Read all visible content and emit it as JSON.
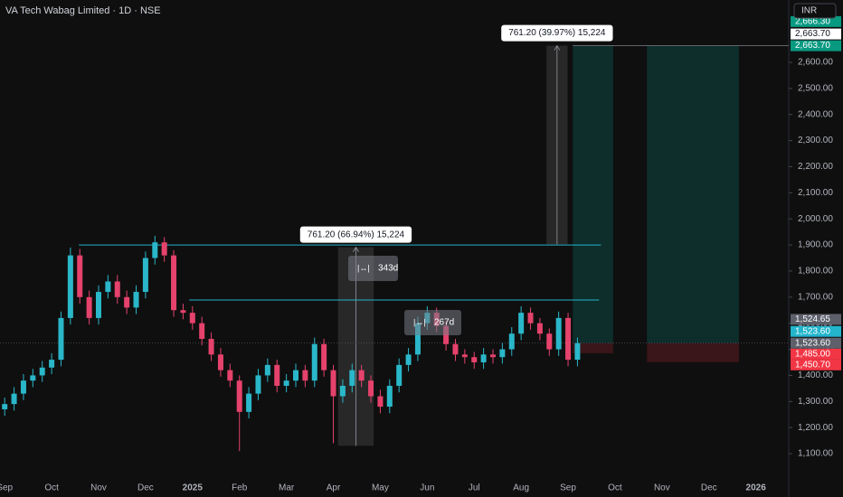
{
  "chart_data": {
    "type": "candlestick",
    "title": "VA Tech Wabag Limited · 1D · NSE",
    "currency": "INR",
    "up_color": "#2ab7c9",
    "down_color": "#e5426c",
    "xlim": [
      -0.1,
      16.7
    ],
    "ylim": [
      1010,
      2839
    ],
    "xticks": [
      {
        "value": 0,
        "label": "Sep"
      },
      {
        "value": 1,
        "label": "Oct"
      },
      {
        "value": 2,
        "label": "Nov"
      },
      {
        "value": 3,
        "label": "Dec"
      },
      {
        "value": 4,
        "label": "2025"
      },
      {
        "value": 5,
        "label": "Feb"
      },
      {
        "value": 6,
        "label": "Mar"
      },
      {
        "value": 7,
        "label": "Apr"
      },
      {
        "value": 8,
        "label": "May"
      },
      {
        "value": 9,
        "label": "Jun"
      },
      {
        "value": 10,
        "label": "Jul"
      },
      {
        "value": 11,
        "label": "Aug"
      },
      {
        "value": 12,
        "label": "Sep"
      },
      {
        "value": 13,
        "label": "Oct"
      },
      {
        "value": 14,
        "label": "Nov"
      },
      {
        "value": 15,
        "label": "Dec"
      },
      {
        "value": 16,
        "label": "2026"
      }
    ],
    "yticks": [
      {
        "value": 1100,
        "label": "1,100.00"
      },
      {
        "value": 1200,
        "label": "1,200.00"
      },
      {
        "value": 1300,
        "label": "1,300.00"
      },
      {
        "value": 1400,
        "label": "1,400.00"
      },
      {
        "value": 1500,
        "label": "1,500.00"
      },
      {
        "value": 1600,
        "label": "1,600.00"
      },
      {
        "value": 1700,
        "label": "1,700.00"
      },
      {
        "value": 1800,
        "label": "1,800.00"
      },
      {
        "value": 1900,
        "label": "1,900.00"
      },
      {
        "value": 2000,
        "label": "2,000.00"
      },
      {
        "value": 2100,
        "label": "2,100.00"
      },
      {
        "value": 2200,
        "label": "2,200.00"
      },
      {
        "value": 2300,
        "label": "2,300.00"
      },
      {
        "value": 2400,
        "label": "2,400.00"
      },
      {
        "value": 2500,
        "label": "2,500.00"
      },
      {
        "value": 2600,
        "label": "2,600.00"
      }
    ],
    "x": [
      0,
      0.2,
      0.4,
      0.6,
      0.8,
      1.0,
      1.2,
      1.4,
      1.6,
      1.8,
      2.0,
      2.2,
      2.4,
      2.6,
      2.8,
      3.0,
      3.2,
      3.4,
      3.6,
      3.8,
      4.0,
      4.2,
      4.4,
      4.6,
      4.8,
      5.0,
      5.2,
      5.4,
      5.6,
      5.8,
      6.0,
      6.2,
      6.4,
      6.6,
      6.8,
      7.0,
      7.2,
      7.4,
      7.6,
      7.8,
      8.0,
      8.2,
      8.4,
      8.6,
      8.8,
      9.0,
      9.2,
      9.4,
      9.6,
      9.8,
      10.0,
      10.2,
      10.4,
      10.6,
      10.8,
      11.0,
      11.2,
      11.4,
      11.6,
      11.8,
      12.0,
      12.2
    ],
    "open": [
      1270,
      1290,
      1330,
      1380,
      1400,
      1430,
      1460,
      1620,
      1860,
      1700,
      1620,
      1720,
      1760,
      1700,
      1660,
      1720,
      1850,
      1910,
      1860,
      1650,
      1640,
      1600,
      1540,
      1480,
      1420,
      1380,
      1260,
      1330,
      1400,
      1440,
      1360,
      1380,
      1420,
      1380,
      1520,
      1420,
      1320,
      1360,
      1420,
      1380,
      1320,
      1280,
      1360,
      1440,
      1480,
      1600,
      1640,
      1590,
      1520,
      1480,
      1470,
      1450,
      1480,
      1470,
      1500,
      1560,
      1640,
      1600,
      1560,
      1500,
      1620,
      1460
    ],
    "high": [
      1315,
      1355,
      1405,
      1425,
      1455,
      1485,
      1645,
      1890,
      1885,
      1725,
      1745,
      1785,
      1785,
      1725,
      1745,
      1875,
      1935,
      1930,
      1880,
      1675,
      1665,
      1625,
      1565,
      1505,
      1445,
      1400,
      1355,
      1425,
      1465,
      1460,
      1405,
      1445,
      1440,
      1545,
      1540,
      1440,
      1385,
      1445,
      1440,
      1400,
      1345,
      1385,
      1465,
      1505,
      1625,
      1665,
      1660,
      1610,
      1540,
      1500,
      1490,
      1505,
      1500,
      1525,
      1585,
      1665,
      1660,
      1620,
      1580,
      1645,
      1640,
      1545
    ],
    "low": [
      1245,
      1265,
      1305,
      1355,
      1375,
      1405,
      1435,
      1595,
      1675,
      1595,
      1595,
      1695,
      1675,
      1635,
      1635,
      1695,
      1825,
      1835,
      1625,
      1615,
      1575,
      1515,
      1455,
      1395,
      1355,
      1110,
      1235,
      1305,
      1375,
      1335,
      1335,
      1355,
      1355,
      1355,
      1395,
      1140,
      1295,
      1335,
      1355,
      1295,
      1255,
      1255,
      1335,
      1415,
      1455,
      1575,
      1565,
      1495,
      1455,
      1445,
      1425,
      1425,
      1445,
      1445,
      1475,
      1535,
      1575,
      1535,
      1475,
      1475,
      1435,
      1435
    ],
    "close": [
      1290,
      1330,
      1380,
      1400,
      1430,
      1460,
      1620,
      1860,
      1700,
      1620,
      1720,
      1760,
      1700,
      1660,
      1720,
      1850,
      1910,
      1860,
      1650,
      1640,
      1600,
      1540,
      1480,
      1420,
      1380,
      1260,
      1330,
      1400,
      1440,
      1360,
      1380,
      1420,
      1380,
      1520,
      1420,
      1320,
      1360,
      1420,
      1380,
      1320,
      1280,
      1360,
      1440,
      1480,
      1600,
      1640,
      1590,
      1520,
      1480,
      1470,
      1450,
      1480,
      1470,
      1500,
      1560,
      1640,
      1600,
      1560,
      1500,
      1620,
      1460,
      1523.6
    ],
    "levels": [
      {
        "value": 1900,
        "from": 1.58,
        "to": 12.7
      },
      {
        "value": 1689,
        "from": 3.93,
        "to": 12.66
      }
    ],
    "rulers": [
      {
        "label": "761.20 (66.94%) 15,224",
        "from": 7.1,
        "to": 7.86,
        "low": 1130,
        "high": 1891.2
      },
      {
        "label": "761.20 (39.97%) 15,224",
        "from": 11.54,
        "to": 11.99,
        "low": 1902.5,
        "high": 2663.7
      }
    ],
    "durations": [
      "343d",
      "267d"
    ],
    "positions": [
      {
        "from": 12.1,
        "to": 12.96,
        "target": 2663.7,
        "entry": 1523.6,
        "stop": 1485
      },
      {
        "from": 13.68,
        "to": 15.64,
        "target": 2663.7,
        "entry": 1523.6,
        "stop": 1450.7
      }
    ],
    "price_labels": [
      {
        "value": 2666.3,
        "label": "2,666.30",
        "color": "#089981"
      },
      {
        "value": 2663.7,
        "label": "2,663.70",
        "color": "#ffffff"
      },
      {
        "value": 2663.7,
        "label": "2,663.70",
        "color": "#089981"
      },
      {
        "value": 1524.65,
        "label": "1,524.65",
        "color": "#5d606b"
      },
      {
        "value": 1523.6,
        "label": "1,523.60",
        "color": "#22b5cc"
      },
      {
        "value": 1523.6,
        "label": "1,523.60",
        "color": "#5d606b"
      },
      {
        "value": 1485,
        "label": "1,485.00",
        "color": "#f23645"
      },
      {
        "value": 1450.7,
        "label": "1,450.70",
        "color": "#f23645"
      }
    ]
  }
}
